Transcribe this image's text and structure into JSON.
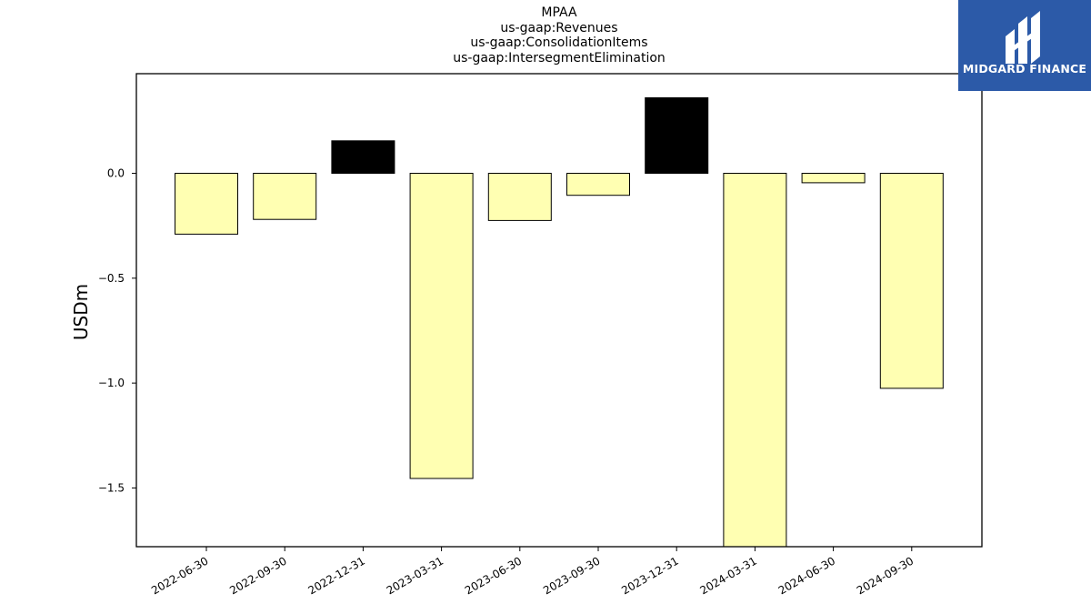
{
  "chart_data": {
    "type": "bar",
    "title": [
      "MPAA",
      "us-gaap:Revenues",
      "us-gaap:ConsolidationItems",
      "us-gaap:IntersegmentElimination"
    ],
    "xlabel": "",
    "ylabel": "USDm",
    "categories": [
      "2022-06-30",
      "2022-09-30",
      "2022-12-31",
      "2023-03-31",
      "2023-06-30",
      "2023-09-30",
      "2023-12-31",
      "2024-03-31",
      "2024-06-30",
      "2024-09-30"
    ],
    "values": [
      -0.29,
      -0.22,
      0.155,
      -1.455,
      -0.225,
      -0.105,
      0.36,
      -1.78,
      -0.045,
      -1.025
    ],
    "ylim": [
      -1.78,
      0.475
    ],
    "yticks": [
      0.0,
      -0.5,
      -1.0,
      -1.5
    ],
    "ytick_labels": [
      "0.0",
      "−0.5",
      "−1.0",
      "−1.5"
    ],
    "colors": {
      "negative": "#ffffb2",
      "positive": "#000000",
      "edge": "#000000"
    },
    "grid": false,
    "legend": "none"
  },
  "logo": {
    "text": "MIDGARD FINANCE",
    "background": "#2c5aa8"
  }
}
